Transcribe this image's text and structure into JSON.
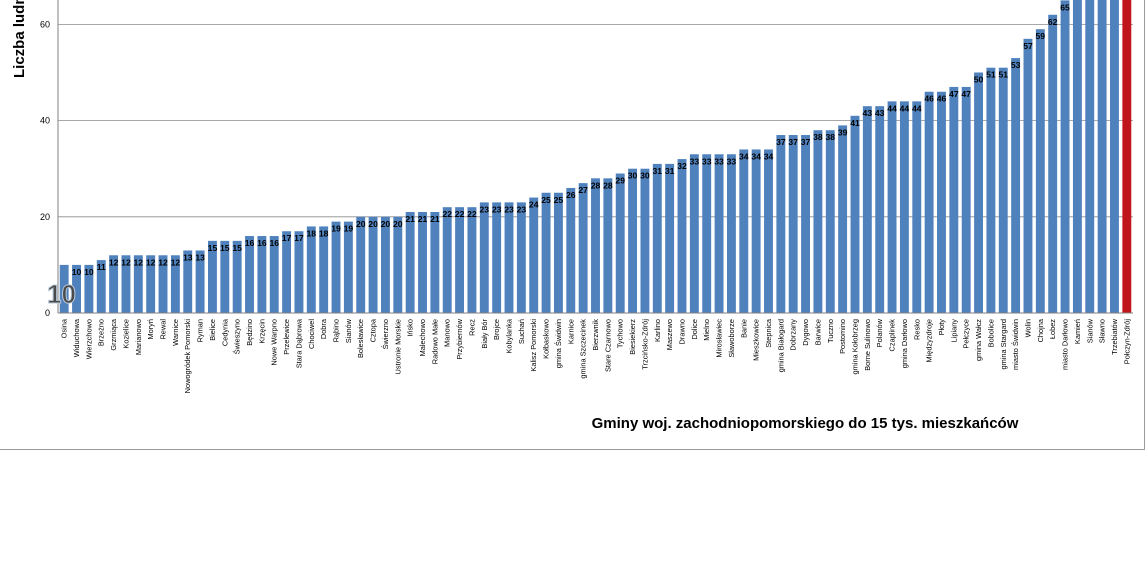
{
  "chart_data": {
    "type": "bar",
    "ylabel": "Liczba ludno",
    "xlabel": "Gminy woj. zachodniopomorskiego do 15 tys. mieszkańców",
    "ylim": [
      0,
      68
    ],
    "yticks": [
      0,
      20,
      40,
      60
    ],
    "grid": true,
    "highlight_annotation": "10",
    "colors": {
      "bar": "#4f81bd",
      "highlight": "#c0161b",
      "grid": "#8c8c8c"
    },
    "highlight_category": "Połczyn-Zdrój",
    "categories": [
      "Osina",
      "Widuchowa",
      "Wierzchowo",
      "Brzeżno",
      "Grzmiąca",
      "Kozielice",
      "Marianowo",
      "Moryń",
      "Rewal",
      "Warnice",
      "Nowogródek Pomorski",
      "Ryman",
      "Bielice",
      "Cedynia",
      "Świeszyno",
      "Będzino",
      "Krzęcin",
      "Nowe Warpno",
      "Przelewice",
      "Stara Dąbrowa",
      "Chociwel",
      "Dobra",
      "Rąbino",
      "Sianów",
      "Bolesławice",
      "Cztopa",
      "Świerzno",
      "Ustronie Morskie",
      "Ińsko",
      "Malechowo",
      "Radowo Małe",
      "Manowo",
      "Przybiernów",
      "Recz",
      "Biały Bór",
      "Brojce",
      "Kobylanka",
      "Suchań",
      "Kalisz Pomorski",
      "Kołbaskowo",
      "gmina Świdwin",
      "Karnice",
      "gmina Szczecinek",
      "Bierzwnik",
      "Stare Czarnowo",
      "Tychowo",
      "Biesiekierz",
      "Trzcińsko-Zdrój",
      "Karlino",
      "Maszewo",
      "Drawno",
      "Dolice",
      "Mielno",
      "Mirosławiec",
      "Sławoborze",
      "Banie",
      "Mieszkowice",
      "Stepnica",
      "gmina Białogard",
      "Dobrzany",
      "Dygowo",
      "Barwice",
      "Tuczno",
      "Postomino",
      "gmina Kołobrzeg",
      "Borne Sulinowo",
      "Polanów",
      "Czaplinek",
      "gmina Darłowo",
      "Resko",
      "Międzyzdroje",
      "Płoty",
      "Lipiany",
      "Pełczyce",
      "gmina Wałcz",
      "Bobolice",
      "gmina Stargard",
      "miasto Świdwin",
      "Wolin",
      "Chojna",
      "Łobez",
      "miasto Darłowo",
      "Kamień",
      "Sianów",
      "Sławno",
      "Trzebiatów",
      "Połczyn-Zdrój"
    ],
    "values": [
      10,
      10,
      10,
      11,
      12,
      12,
      12,
      12,
      12,
      12,
      13,
      13,
      15,
      15,
      15,
      16,
      16,
      16,
      17,
      17,
      18,
      18,
      19,
      19,
      20,
      20,
      20,
      20,
      21,
      21,
      21,
      22,
      22,
      22,
      23,
      23,
      23,
      23,
      24,
      25,
      25,
      26,
      27,
      28,
      28,
      29,
      30,
      30,
      31,
      31,
      32,
      33,
      33,
      33,
      33,
      34,
      34,
      34,
      37,
      37,
      37,
      38,
      38,
      39,
      41,
      43,
      43,
      44,
      44,
      44,
      46,
      46,
      47,
      47,
      50,
      51,
      51,
      53,
      57,
      59,
      62,
      65,
      68,
      68,
      68,
      68,
      68
    ],
    "value_labels": [
      "",
      "10",
      "10",
      "11",
      "12",
      "12",
      "12",
      "12",
      "12",
      "12",
      "13",
      "13",
      "15",
      "15",
      "15",
      "16",
      "16",
      "16",
      "17",
      "17",
      "18",
      "18",
      "19",
      "19",
      "20",
      "20",
      "20",
      "20",
      "21",
      "21",
      "21",
      "22",
      "22",
      "22",
      "23",
      "23",
      "23",
      "23",
      "24",
      "25",
      "25",
      "26",
      "27",
      "28",
      "28",
      "29",
      "30",
      "30",
      "31",
      "31",
      "32",
      "33",
      "33",
      "33",
      "33",
      "34",
      "34",
      "34",
      "37",
      "37",
      "37",
      "38",
      "38",
      "39",
      "41",
      "43",
      "43",
      "44",
      "44",
      "44",
      "46",
      "46",
      "47",
      "47",
      "50",
      "51",
      "51",
      "53",
      "57",
      "59",
      "62",
      "65",
      "",
      "",
      "",
      "",
      ""
    ]
  }
}
